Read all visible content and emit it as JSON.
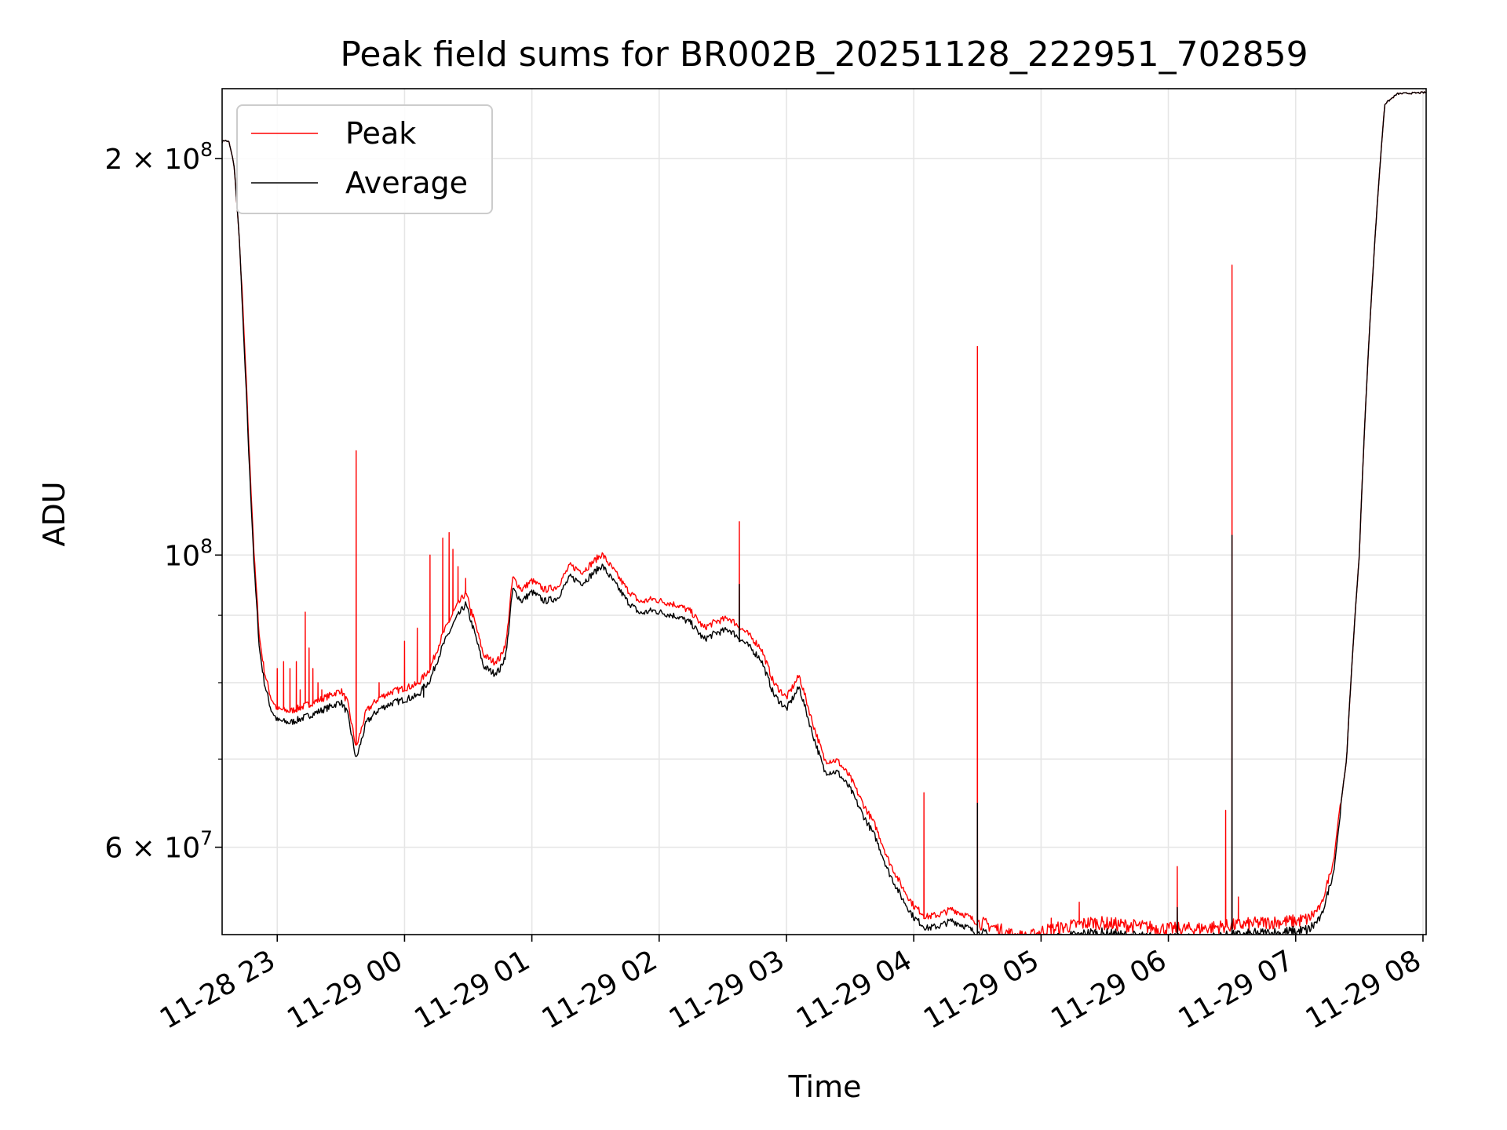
{
  "chart_data": {
    "type": "line",
    "title": "Peak field sums for BR002B_20251128_222951_702859",
    "xlabel": "Time",
    "ylabel": "ADU",
    "yscale": "log",
    "grid": true,
    "legend_location": "upper-left",
    "x_unit": "hours since 11-28 22:00",
    "xlim": [
      0.567,
      10.025
    ],
    "ylim": [
      51500000,
      226000000
    ],
    "x_ticks": [
      {
        "value": 1,
        "label": "11-28 23"
      },
      {
        "value": 2,
        "label": "11-29 00"
      },
      {
        "value": 3,
        "label": "11-29 01"
      },
      {
        "value": 4,
        "label": "11-29 02"
      },
      {
        "value": 5,
        "label": "11-29 03"
      },
      {
        "value": 6,
        "label": "11-29 04"
      },
      {
        "value": 7,
        "label": "11-29 05"
      },
      {
        "value": 8,
        "label": "11-29 06"
      },
      {
        "value": 9,
        "label": "11-29 07"
      },
      {
        "value": 10,
        "label": "11-29 08"
      }
    ],
    "y_major_ticks": [
      {
        "value": 60000000,
        "base": "6 × 10",
        "exp": "7"
      },
      {
        "value": 100000000,
        "base": "10",
        "exp": "8"
      },
      {
        "value": 200000000,
        "base": "2 × 10",
        "exp": "8"
      }
    ],
    "y_minor_ticks": [
      70000000,
      80000000,
      90000000
    ],
    "average_key_points": [
      [
        0.567,
        0.2058
      ],
      [
        0.58,
        0.2065
      ],
      [
        0.62,
        0.206
      ],
      [
        0.66,
        0.198
      ],
      [
        0.7,
        0.175
      ],
      [
        0.74,
        0.145
      ],
      [
        0.78,
        0.118
      ],
      [
        0.82,
        0.098
      ],
      [
        0.86,
        0.0855
      ],
      [
        0.9,
        0.0805
      ],
      [
        0.95,
        0.077
      ],
      [
        1.0,
        0.0755
      ],
      [
        1.1,
        0.0752
      ],
      [
        1.2,
        0.0758
      ],
      [
        1.3,
        0.0765
      ],
      [
        1.4,
        0.0772
      ],
      [
        1.5,
        0.078
      ],
      [
        1.55,
        0.0765
      ],
      [
        1.62,
        0.0705
      ],
      [
        1.7,
        0.0752
      ],
      [
        1.8,
        0.077
      ],
      [
        1.9,
        0.0778
      ],
      [
        2.0,
        0.0783
      ],
      [
        2.1,
        0.0788
      ],
      [
        2.2,
        0.081
      ],
      [
        2.3,
        0.086
      ],
      [
        2.4,
        0.09
      ],
      [
        2.48,
        0.0925
      ],
      [
        2.55,
        0.088
      ],
      [
        2.62,
        0.083
      ],
      [
        2.7,
        0.082
      ],
      [
        2.75,
        0.0825
      ],
      [
        2.8,
        0.085
      ],
      [
        2.85,
        0.095
      ],
      [
        2.92,
        0.093
      ],
      [
        3.0,
        0.0945
      ],
      [
        3.1,
        0.093
      ],
      [
        3.2,
        0.0935
      ],
      [
        3.3,
        0.097
      ],
      [
        3.4,
        0.096
      ],
      [
        3.55,
        0.099
      ],
      [
        3.65,
        0.096
      ],
      [
        3.75,
        0.093
      ],
      [
        3.85,
        0.091
      ],
      [
        3.95,
        0.0915
      ],
      [
        4.05,
        0.091
      ],
      [
        4.15,
        0.0905
      ],
      [
        4.25,
        0.0895
      ],
      [
        4.35,
        0.087
      ],
      [
        4.45,
        0.088
      ],
      [
        4.55,
        0.0885
      ],
      [
        4.7,
        0.086
      ],
      [
        4.8,
        0.084
      ],
      [
        4.9,
        0.079
      ],
      [
        5.0,
        0.077
      ],
      [
        5.1,
        0.08
      ],
      [
        5.2,
        0.074
      ],
      [
        5.3,
        0.069
      ],
      [
        5.4,
        0.069
      ],
      [
        5.5,
        0.067
      ],
      [
        5.6,
        0.064
      ],
      [
        5.7,
        0.0615
      ],
      [
        5.8,
        0.058
      ],
      [
        5.9,
        0.0555
      ],
      [
        6.0,
        0.0535
      ],
      [
        6.1,
        0.0525
      ],
      [
        6.2,
        0.0527
      ],
      [
        6.3,
        0.0532
      ],
      [
        6.4,
        0.0527
      ],
      [
        6.5,
        0.052
      ],
      [
        6.6,
        0.0517
      ],
      [
        6.7,
        0.0512
      ],
      [
        6.8,
        0.0508
      ],
      [
        6.9,
        0.0506
      ],
      [
        7.0,
        0.0512
      ],
      [
        7.2,
        0.0516
      ],
      [
        7.4,
        0.052
      ],
      [
        7.6,
        0.0518
      ],
      [
        7.8,
        0.0516
      ],
      [
        8.0,
        0.0514
      ],
      [
        8.2,
        0.0514
      ],
      [
        8.4,
        0.0516
      ],
      [
        8.6,
        0.0518
      ],
      [
        8.8,
        0.052
      ],
      [
        9.0,
        0.0521
      ],
      [
        9.1,
        0.0523
      ],
      [
        9.2,
        0.0535
      ],
      [
        9.3,
        0.058
      ],
      [
        9.4,
        0.07
      ],
      [
        9.5,
        0.1
      ],
      [
        9.6,
        0.16
      ],
      [
        9.7,
        0.22
      ],
      [
        9.8,
        0.224
      ],
      [
        10.025,
        0.2245
      ]
    ],
    "series": [
      {
        "name": "Peak",
        "color": "#ff0000",
        "offset_ratio": 1.012,
        "spikes": [
          [
            1.0,
            0.082
          ],
          [
            1.05,
            0.083
          ],
          [
            1.1,
            0.082
          ],
          [
            1.15,
            0.083
          ],
          [
            1.18,
            0.079
          ],
          [
            1.22,
            0.0905
          ],
          [
            1.25,
            0.085
          ],
          [
            1.28,
            0.082
          ],
          [
            1.32,
            0.08
          ],
          [
            1.35,
            0.079
          ],
          [
            1.62,
            0.12
          ],
          [
            1.8,
            0.08
          ],
          [
            2.0,
            0.086
          ],
          [
            2.1,
            0.088
          ],
          [
            2.2,
            0.1
          ],
          [
            2.3,
            0.103
          ],
          [
            2.35,
            0.104
          ],
          [
            2.38,
            0.101
          ],
          [
            2.42,
            0.098
          ],
          [
            2.48,
            0.096
          ],
          [
            2.52,
            0.09
          ],
          [
            4.63,
            0.106
          ],
          [
            6.08,
            0.066
          ],
          [
            6.5,
            0.144
          ],
          [
            7.08,
            0.053
          ],
          [
            7.3,
            0.0545
          ],
          [
            8.07,
            0.058
          ],
          [
            8.45,
            0.064
          ],
          [
            8.5,
            0.166
          ],
          [
            8.55,
            0.055
          ]
        ]
      },
      {
        "name": "Average",
        "color": "#000000",
        "offset_ratio": 0.992,
        "spikes": [
          [
            2.15,
            0.078
          ],
          [
            4.63,
            0.095
          ],
          [
            6.5,
            0.0648
          ],
          [
            8.07,
            0.054
          ],
          [
            8.5,
            0.1035
          ]
        ]
      }
    ]
  }
}
